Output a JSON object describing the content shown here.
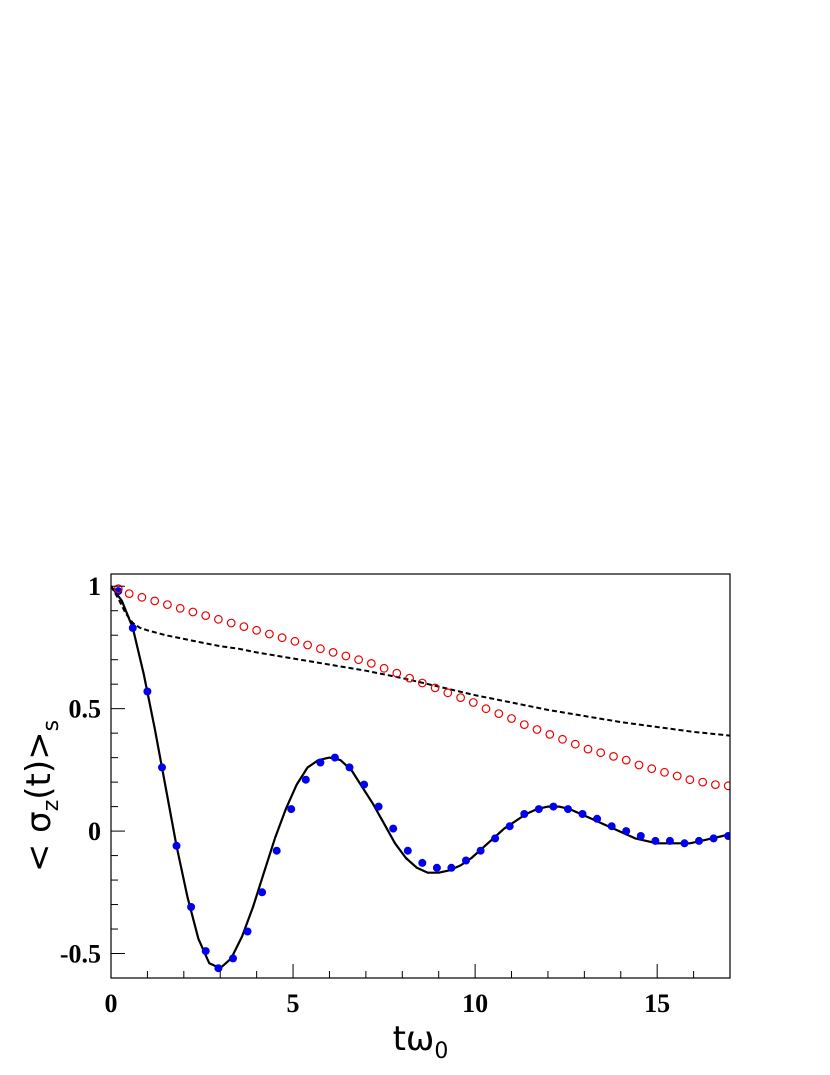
{
  "chart_data": {
    "type": "line",
    "title": "",
    "xlabel": {
      "main": "tω",
      "sub": "0"
    },
    "ylabel": {
      "pre": "< σ",
      "sub1": "z",
      "mid": "(t)",
      "post": ">",
      "sub2": "s"
    },
    "xlim": [
      0,
      17
    ],
    "ylim": [
      -0.6,
      1.05
    ],
    "x_ticks": [
      0,
      5,
      10,
      15
    ],
    "x_tick_labels": [
      "0",
      "5",
      "10",
      "15"
    ],
    "y_ticks": [
      -0.5,
      0,
      0.5,
      1
    ],
    "y_tick_labels": [
      "-0.5",
      "0",
      "0.5",
      "1"
    ],
    "grid": false,
    "legend": "none",
    "series": [
      {
        "style": "solid-line",
        "color": "#000000",
        "points": [
          [
            0,
            1.0
          ],
          [
            0.3,
            0.94
          ],
          [
            0.6,
            0.83
          ],
          [
            0.9,
            0.64
          ],
          [
            1.2,
            0.42
          ],
          [
            1.5,
            0.18
          ],
          [
            1.8,
            -0.06
          ],
          [
            2.1,
            -0.27
          ],
          [
            2.4,
            -0.44
          ],
          [
            2.7,
            -0.54
          ],
          [
            3.0,
            -0.56
          ],
          [
            3.3,
            -0.52
          ],
          [
            3.6,
            -0.43
          ],
          [
            3.9,
            -0.31
          ],
          [
            4.2,
            -0.17
          ],
          [
            4.5,
            -0.03
          ],
          [
            4.8,
            0.09
          ],
          [
            5.1,
            0.19
          ],
          [
            5.4,
            0.26
          ],
          [
            5.7,
            0.29
          ],
          [
            6.0,
            0.3
          ],
          [
            6.3,
            0.29
          ],
          [
            6.6,
            0.25
          ],
          [
            6.9,
            0.18
          ],
          [
            7.2,
            0.11
          ],
          [
            7.5,
            0.03
          ],
          [
            7.8,
            -0.05
          ],
          [
            8.1,
            -0.11
          ],
          [
            8.4,
            -0.15
          ],
          [
            8.7,
            -0.17
          ],
          [
            9.0,
            -0.17
          ],
          [
            9.3,
            -0.16
          ],
          [
            9.6,
            -0.14
          ],
          [
            9.9,
            -0.11
          ],
          [
            10.2,
            -0.07
          ],
          [
            10.5,
            -0.03
          ],
          [
            10.8,
            0.01
          ],
          [
            11.1,
            0.04
          ],
          [
            11.4,
            0.07
          ],
          [
            11.7,
            0.09
          ],
          [
            12.0,
            0.1
          ],
          [
            12.3,
            0.1
          ],
          [
            12.6,
            0.09
          ],
          [
            12.9,
            0.07
          ],
          [
            13.2,
            0.05
          ],
          [
            13.5,
            0.03
          ],
          [
            13.8,
            0.01
          ],
          [
            14.1,
            -0.01
          ],
          [
            14.4,
            -0.03
          ],
          [
            14.7,
            -0.04
          ],
          [
            15.0,
            -0.05
          ],
          [
            15.3,
            -0.05
          ],
          [
            15.6,
            -0.05
          ],
          [
            15.9,
            -0.05
          ],
          [
            16.2,
            -0.04
          ],
          [
            16.5,
            -0.03
          ],
          [
            16.8,
            -0.02
          ],
          [
            17.0,
            -0.01
          ]
        ]
      },
      {
        "style": "filled-dots",
        "color": "#0000ee",
        "points": [
          [
            0.2,
            0.98
          ],
          [
            0.6,
            0.83
          ],
          [
            1.0,
            0.57
          ],
          [
            1.4,
            0.26
          ],
          [
            1.8,
            -0.06
          ],
          [
            2.2,
            -0.31
          ],
          [
            2.6,
            -0.49
          ],
          [
            2.95,
            -0.56
          ],
          [
            3.35,
            -0.52
          ],
          [
            3.75,
            -0.41
          ],
          [
            4.15,
            -0.25
          ],
          [
            4.55,
            -0.08
          ],
          [
            4.95,
            0.09
          ],
          [
            5.35,
            0.21
          ],
          [
            5.75,
            0.28
          ],
          [
            6.15,
            0.3
          ],
          [
            6.55,
            0.26
          ],
          [
            6.95,
            0.19
          ],
          [
            7.35,
            0.1
          ],
          [
            7.75,
            0.01
          ],
          [
            8.15,
            -0.08
          ],
          [
            8.55,
            -0.13
          ],
          [
            8.95,
            -0.15
          ],
          [
            9.35,
            -0.15
          ],
          [
            9.75,
            -0.12
          ],
          [
            10.15,
            -0.08
          ],
          [
            10.55,
            -0.03
          ],
          [
            10.95,
            0.02
          ],
          [
            11.35,
            0.07
          ],
          [
            11.75,
            0.09
          ],
          [
            12.15,
            0.1
          ],
          [
            12.55,
            0.09
          ],
          [
            12.95,
            0.07
          ],
          [
            13.35,
            0.05
          ],
          [
            13.75,
            0.02
          ],
          [
            14.15,
            0.0
          ],
          [
            14.55,
            -0.02
          ],
          [
            14.95,
            -0.04
          ],
          [
            15.35,
            -0.04
          ],
          [
            15.75,
            -0.05
          ],
          [
            16.15,
            -0.04
          ],
          [
            16.55,
            -0.03
          ],
          [
            16.95,
            -0.02
          ]
        ]
      },
      {
        "style": "dashed-line",
        "color": "#000000",
        "points": [
          [
            0,
            1.0
          ],
          [
            0.2,
            0.95
          ],
          [
            0.4,
            0.89
          ],
          [
            0.6,
            0.85
          ],
          [
            0.8,
            0.83
          ],
          [
            1.0,
            0.82
          ],
          [
            1.5,
            0.8
          ],
          [
            2,
            0.785
          ],
          [
            2.5,
            0.77
          ],
          [
            3,
            0.755
          ],
          [
            3.5,
            0.745
          ],
          [
            4,
            0.73
          ],
          [
            5,
            0.705
          ],
          [
            6,
            0.68
          ],
          [
            7,
            0.655
          ],
          [
            8,
            0.625
          ],
          [
            9,
            0.59
          ],
          [
            10,
            0.555
          ],
          [
            11,
            0.525
          ],
          [
            12,
            0.495
          ],
          [
            13,
            0.47
          ],
          [
            14,
            0.445
          ],
          [
            15,
            0.425
          ],
          [
            16,
            0.405
          ],
          [
            17,
            0.39
          ]
        ]
      },
      {
        "style": "open-circles",
        "color": "#ee0000",
        "points": [
          [
            0.2,
            0.99
          ],
          [
            0.5,
            0.97
          ],
          [
            0.85,
            0.955
          ],
          [
            1.2,
            0.94
          ],
          [
            1.55,
            0.925
          ],
          [
            1.9,
            0.91
          ],
          [
            2.25,
            0.895
          ],
          [
            2.6,
            0.88
          ],
          [
            2.95,
            0.865
          ],
          [
            3.3,
            0.85
          ],
          [
            3.65,
            0.835
          ],
          [
            4.0,
            0.82
          ],
          [
            4.35,
            0.805
          ],
          [
            4.7,
            0.79
          ],
          [
            5.05,
            0.775
          ],
          [
            5.4,
            0.76
          ],
          [
            5.75,
            0.745
          ],
          [
            6.1,
            0.73
          ],
          [
            6.45,
            0.715
          ],
          [
            6.8,
            0.7
          ],
          [
            7.15,
            0.685
          ],
          [
            7.5,
            0.665
          ],
          [
            7.85,
            0.645
          ],
          [
            8.2,
            0.625
          ],
          [
            8.55,
            0.605
          ],
          [
            8.9,
            0.585
          ],
          [
            9.25,
            0.565
          ],
          [
            9.6,
            0.545
          ],
          [
            9.95,
            0.525
          ],
          [
            10.3,
            0.5
          ],
          [
            10.65,
            0.48
          ],
          [
            11.0,
            0.46
          ],
          [
            11.35,
            0.435
          ],
          [
            11.7,
            0.415
          ],
          [
            12.05,
            0.395
          ],
          [
            12.4,
            0.375
          ],
          [
            12.75,
            0.355
          ],
          [
            13.1,
            0.335
          ],
          [
            13.45,
            0.32
          ],
          [
            13.8,
            0.305
          ],
          [
            14.15,
            0.29
          ],
          [
            14.5,
            0.27
          ],
          [
            14.85,
            0.255
          ],
          [
            15.2,
            0.24
          ],
          [
            15.55,
            0.225
          ],
          [
            15.9,
            0.21
          ],
          [
            16.25,
            0.2
          ],
          [
            16.6,
            0.19
          ],
          [
            16.95,
            0.185
          ]
        ]
      }
    ]
  }
}
